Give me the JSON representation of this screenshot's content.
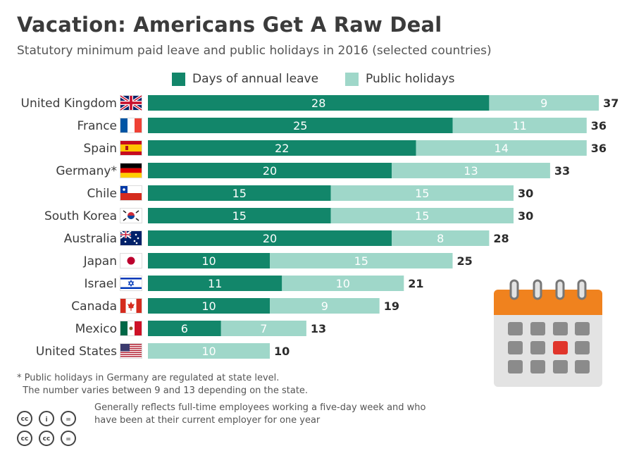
{
  "title": "Vacation: Americans Get A Raw Deal",
  "subtitle": "Statutory minimum paid leave and public holidays in 2016 (selected countries)",
  "footnote": "* Public holidays in Germany are regulated at state level.\n  The number varies between 9 and 13 depending on the state.",
  "note": "Generally reflects full-time employees working a five-day week and who have been at their current employer for one year",
  "colors": {
    "annual": "#12866a",
    "holidays": "#9fd7c9",
    "accent": "#f0821e"
  },
  "icons": [
    "uk-flag-icon",
    "france-flag-icon",
    "spain-flag-icon",
    "germany-flag-icon",
    "chile-flag-icon",
    "south-korea-flag-icon",
    "australia-flag-icon",
    "japan-flag-icon",
    "israel-flag-icon",
    "canada-flag-icon",
    "mexico-flag-icon",
    "us-flag-icon",
    "calendar-icon",
    "cc-icon"
  ],
  "chart_data": {
    "type": "bar",
    "orientation": "horizontal",
    "stacked": true,
    "categories": [
      "United Kingdom",
      "France",
      "Spain",
      "Germany*",
      "Chile",
      "South Korea",
      "Australia",
      "Japan",
      "Israel",
      "Canada",
      "Mexico",
      "United States"
    ],
    "series": [
      {
        "name": "Days of annual leave",
        "values": [
          28,
          25,
          22,
          20,
          15,
          15,
          20,
          10,
          11,
          10,
          6,
          0
        ]
      },
      {
        "name": "Public holidays",
        "values": [
          9,
          11,
          14,
          13,
          15,
          15,
          8,
          15,
          10,
          9,
          7,
          10
        ]
      }
    ],
    "totals": [
      37,
      36,
      36,
      33,
      30,
      30,
      28,
      25,
      21,
      19,
      13,
      10
    ],
    "xlim": [
      0,
      37
    ],
    "legend_position": "top"
  }
}
